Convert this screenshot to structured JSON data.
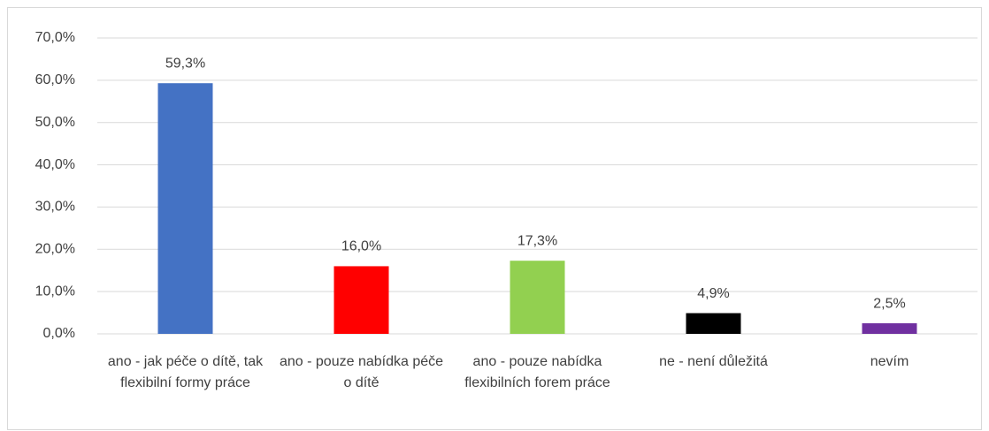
{
  "chart_data": {
    "type": "bar",
    "categories": [
      "ano - jak péče o dítě, tak flexibilní formy práce",
      "ano - pouze nabídka péče o dítě",
      "ano - pouze nabídka flexibilních forem práce",
      "ne - není důležitá",
      "nevím"
    ],
    "values": [
      59.3,
      16.0,
      17.3,
      4.9,
      2.5
    ],
    "value_labels": [
      "59,3%",
      "16,0%",
      "17,3%",
      "4,9%",
      "2,5%"
    ],
    "colors": [
      "#4472c4",
      "#ff0000",
      "#92d050",
      "#000000",
      "#7030a0"
    ],
    "ylim": [
      0,
      70
    ],
    "yticks": [
      {
        "value": 0,
        "label": "0,0%"
      },
      {
        "value": 10,
        "label": "10,0%"
      },
      {
        "value": 20,
        "label": "20,0%"
      },
      {
        "value": 30,
        "label": "30,0%"
      },
      {
        "value": 40,
        "label": "40,0%"
      },
      {
        "value": 50,
        "label": "50,0%"
      },
      {
        "value": 60,
        "label": "60,0%"
      },
      {
        "value": 70,
        "label": "70,0%"
      }
    ],
    "grid": true
  }
}
